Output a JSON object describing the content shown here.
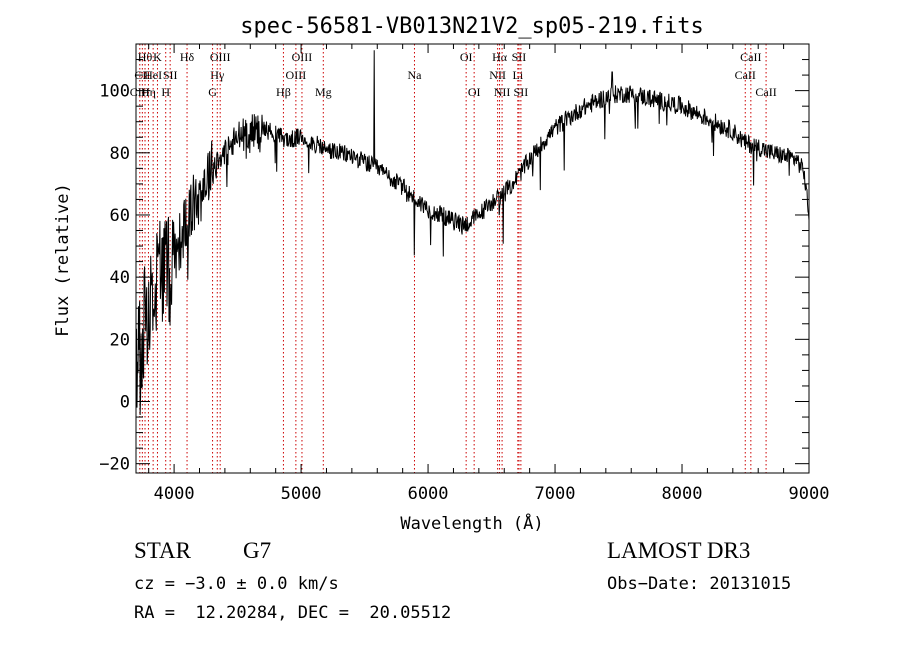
{
  "chart_data": {
    "type": "line",
    "title": "spec-56581-VB013N21V2_sp05-219.fits",
    "xlabel": "Wavelength (Å)",
    "ylabel": "Flux (relative)",
    "xlim": [
      3700,
      9000
    ],
    "ylim": [
      -23,
      115
    ],
    "xticks": [
      4000,
      5000,
      6000,
      7000,
      8000,
      9000
    ],
    "yticks": [
      -20,
      0,
      20,
      40,
      60,
      80,
      100
    ],
    "line_color": "#000000",
    "marker_color": "#cc0000",
    "spectrum_anchors": [
      [
        3700,
        10
      ],
      [
        3750,
        22
      ],
      [
        3800,
        30
      ],
      [
        3850,
        38
      ],
      [
        3900,
        45
      ],
      [
        3950,
        40
      ],
      [
        4000,
        48
      ],
      [
        4050,
        52
      ],
      [
        4100,
        58
      ],
      [
        4150,
        63
      ],
      [
        4200,
        66
      ],
      [
        4250,
        72
      ],
      [
        4300,
        75
      ],
      [
        4350,
        78
      ],
      [
        4400,
        80
      ],
      [
        4450,
        82
      ],
      [
        4500,
        85
      ],
      [
        4600,
        87
      ],
      [
        4700,
        88
      ],
      [
        4800,
        86
      ],
      [
        4900,
        84
      ],
      [
        5000,
        85
      ],
      [
        5100,
        83
      ],
      [
        5200,
        81
      ],
      [
        5300,
        80
      ],
      [
        5400,
        79
      ],
      [
        5500,
        77
      ],
      [
        5600,
        75
      ],
      [
        5700,
        72
      ],
      [
        5800,
        69
      ],
      [
        5900,
        65
      ],
      [
        6000,
        62
      ],
      [
        6100,
        60
      ],
      [
        6200,
        58
      ],
      [
        6300,
        57
      ],
      [
        6400,
        60
      ],
      [
        6500,
        64
      ],
      [
        6600,
        67
      ],
      [
        6700,
        72
      ],
      [
        6800,
        78
      ],
      [
        6900,
        83
      ],
      [
        7000,
        88
      ],
      [
        7100,
        91
      ],
      [
        7200,
        94
      ],
      [
        7300,
        96
      ],
      [
        7400,
        98
      ],
      [
        7500,
        99
      ],
      [
        7600,
        99
      ],
      [
        7700,
        98
      ],
      [
        7800,
        97
      ],
      [
        7900,
        96
      ],
      [
        8000,
        95
      ],
      [
        8100,
        93
      ],
      [
        8200,
        91
      ],
      [
        8300,
        89
      ],
      [
        8400,
        87
      ],
      [
        8500,
        83
      ],
      [
        8600,
        82
      ],
      [
        8700,
        80
      ],
      [
        8800,
        79
      ],
      [
        8900,
        78
      ],
      [
        8960,
        74
      ],
      [
        9000,
        60
      ]
    ],
    "spikes": [
      {
        "x": 5577,
        "y": 113
      },
      {
        "x": 5893,
        "y": 47
      },
      {
        "x": 7450,
        "y": 106
      }
    ],
    "lines": [
      {
        "x": 3730,
        "label": "CIII",
        "row": 2
      },
      {
        "x": 3750,
        "label": "CII",
        "row": 1
      },
      {
        "x": 3771,
        "label": "Hθ",
        "row": 0
      },
      {
        "x": 3798,
        "label": "Hη",
        "row": 2
      },
      {
        "x": 3835,
        "label": "HeI",
        "row": 1
      },
      {
        "x": 3869,
        "label": "K",
        "row": 0
      },
      {
        "x": 3934,
        "label": "H",
        "row": 2
      },
      {
        "x": 3969,
        "label": "SII",
        "row": 1
      },
      {
        "x": 4102,
        "label": "Hδ",
        "row": 0
      },
      {
        "x": 4340,
        "label": "Hγ",
        "row": 1
      },
      {
        "x": 4303,
        "label": "G",
        "row": 2
      },
      {
        "x": 4363,
        "label": "OIII",
        "row": 0
      },
      {
        "x": 4861,
        "label": "Hβ",
        "row": 2
      },
      {
        "x": 4959,
        "label": "OIII",
        "row": 1
      },
      {
        "x": 5007,
        "label": "OIII",
        "row": 0
      },
      {
        "x": 5175,
        "label": "Mg",
        "row": 2
      },
      {
        "x": 5893,
        "label": "Na",
        "row": 1
      },
      {
        "x": 6300,
        "label": "OI",
        "row": 0
      },
      {
        "x": 6363,
        "label": "OI",
        "row": 2
      },
      {
        "x": 6548,
        "label": "NII",
        "row": 1
      },
      {
        "x": 6563,
        "label": "Hα",
        "row": 0
      },
      {
        "x": 6583,
        "label": "NII",
        "row": 2
      },
      {
        "x": 6707,
        "label": "Li",
        "row": 1
      },
      {
        "x": 6716,
        "label": "SII",
        "row": 0
      },
      {
        "x": 6731,
        "label": "SII",
        "row": 2
      },
      {
        "x": 8498,
        "label": "CaII",
        "row": 1
      },
      {
        "x": 8542,
        "label": "CaII",
        "row": 0
      },
      {
        "x": 8662,
        "label": "CaII",
        "row": 2
      }
    ]
  },
  "info": {
    "obj_class": "STAR",
    "obj_subclass": "G7",
    "cz": "cz = −3.0 ± 0.0 km/s",
    "radec": "RA =  12.20284, DEC =  20.05512",
    "survey": "LAMOST DR3",
    "obsdate": "Obs−Date: 20131015"
  }
}
